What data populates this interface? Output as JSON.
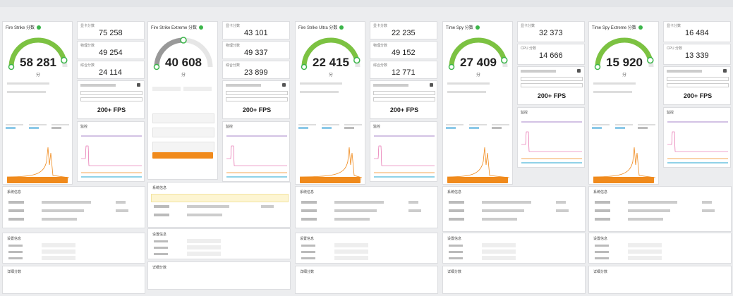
{
  "colors": {
    "accent_green": "#7cc242",
    "accent_grey": "#999999",
    "orange": "#f08a1c",
    "purple": "#8a5cb8"
  },
  "icons": [
    "check-icon",
    "info-icon",
    "dropdown-icon"
  ],
  "panels": [
    {
      "title": "Fire Strike 分数",
      "score": "58 281",
      "gauge": 0.92,
      "gauge_color": "#7cc242",
      "subs": [
        {
          "label": "显卡分数",
          "value": "75 258"
        },
        {
          "label": "物理分数",
          "value": "49 254"
        },
        {
          "label": "综合分数",
          "value": "24 114"
        }
      ]
    },
    {
      "title": "Fire Strike Extreme 分数",
      "score": "40 608",
      "gauge": 0.5,
      "gauge_color": "#999999",
      "subs": [
        {
          "label": "显卡分数",
          "value": "43 101"
        },
        {
          "label": "物理分数",
          "value": "49 337"
        },
        {
          "label": "综合分数",
          "value": "23 899"
        }
      ]
    },
    {
      "title": "Fire Strike Ultra 分数",
      "score": "22 415",
      "gauge": 0.92,
      "gauge_color": "#7cc242",
      "subs": [
        {
          "label": "显卡分数",
          "value": "22 235"
        },
        {
          "label": "物理分数",
          "value": "49 152"
        },
        {
          "label": "综合分数",
          "value": "12 771"
        }
      ]
    },
    {
      "title": "Time Spy 分数",
      "score": "27 409",
      "gauge": 0.92,
      "gauge_color": "#7cc242",
      "subs": [
        {
          "label": "显卡分数",
          "value": "32 373"
        },
        {
          "label": "CPU 分数",
          "value": "14 666"
        }
      ]
    },
    {
      "title": "Time Spy Extreme 分数",
      "score": "15 920",
      "gauge": 0.92,
      "gauge_color": "#7cc242",
      "subs": [
        {
          "label": "显卡分数",
          "value": "16 484"
        },
        {
          "label": "CPU 分数",
          "value": "13 339"
        }
      ]
    }
  ],
  "fps_label": "200+ FPS",
  "unit_label": "分",
  "section_labels": {
    "sysinfo": "系统信息",
    "monitor": "监控",
    "settings": "设置信息",
    "details": "详细分数"
  }
}
